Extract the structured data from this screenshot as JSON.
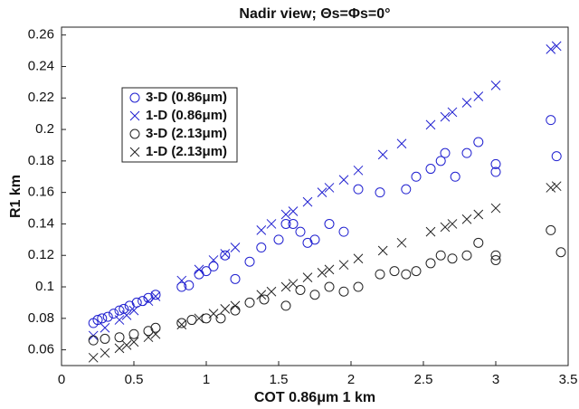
{
  "chart_data": {
    "type": "scatter",
    "title": "Nadir view; Θs=Φs=0°",
    "xlabel": "COT 0.86μm 1 km",
    "ylabel": "R1 km",
    "xlim": [
      0,
      3.5
    ],
    "ylim": [
      0.05,
      0.265
    ],
    "xticks": [
      0,
      0.5,
      1,
      1.5,
      2,
      2.5,
      3,
      3.5
    ],
    "yticks": [
      0.06,
      0.08,
      0.1,
      0.12,
      0.14,
      0.16,
      0.18,
      0.2,
      0.22,
      0.24,
      0.26
    ],
    "grid": false,
    "legend": "upper left",
    "series": [
      {
        "name": "3-D (0.86μm)",
        "color": "#2020d0",
        "marker": "o",
        "x": [
          0.22,
          0.25,
          0.28,
          0.32,
          0.36,
          0.4,
          0.43,
          0.47,
          0.52,
          0.56,
          0.6,
          0.65,
          0.83,
          0.88,
          0.95,
          1.0,
          1.05,
          1.13,
          1.2,
          1.3,
          1.38,
          1.5,
          1.55,
          1.6,
          1.65,
          1.7,
          1.75,
          1.85,
          1.95,
          2.05,
          2.2,
          2.38,
          2.45,
          2.55,
          2.62,
          2.65,
          2.72,
          2.8,
          2.88,
          3.0,
          3.0,
          3.38,
          3.42
        ],
        "y": [
          0.077,
          0.079,
          0.08,
          0.081,
          0.083,
          0.085,
          0.086,
          0.088,
          0.09,
          0.091,
          0.093,
          0.095,
          0.1,
          0.101,
          0.108,
          0.11,
          0.113,
          0.12,
          0.105,
          0.116,
          0.125,
          0.13,
          0.14,
          0.14,
          0.135,
          0.128,
          0.13,
          0.14,
          0.135,
          0.162,
          0.16,
          0.162,
          0.17,
          0.175,
          0.18,
          0.185,
          0.17,
          0.185,
          0.192,
          0.178,
          0.173,
          0.206,
          0.183
        ]
      },
      {
        "name": "1-D (0.86μm)",
        "color": "#2020d0",
        "marker": "x",
        "x": [
          0.22,
          0.3,
          0.4,
          0.45,
          0.5,
          0.6,
          0.65,
          0.83,
          0.95,
          1.05,
          1.13,
          1.2,
          1.38,
          1.45,
          1.55,
          1.6,
          1.7,
          1.8,
          1.85,
          1.95,
          2.05,
          2.22,
          2.35,
          2.55,
          2.65,
          2.7,
          2.8,
          2.88,
          3.0,
          3.38,
          3.42
        ],
        "y": [
          0.069,
          0.074,
          0.079,
          0.082,
          0.085,
          0.091,
          0.094,
          0.104,
          0.111,
          0.117,
          0.121,
          0.125,
          0.136,
          0.14,
          0.146,
          0.148,
          0.154,
          0.16,
          0.163,
          0.168,
          0.174,
          0.184,
          0.191,
          0.203,
          0.208,
          0.211,
          0.217,
          0.221,
          0.228,
          0.251,
          0.253
        ]
      },
      {
        "name": "3-D (2.13μm)",
        "color": "#222222",
        "marker": "o",
        "x": [
          0.22,
          0.3,
          0.4,
          0.5,
          0.6,
          0.65,
          0.83,
          0.9,
          1.0,
          1.1,
          1.2,
          1.3,
          1.4,
          1.55,
          1.65,
          1.75,
          1.85,
          1.95,
          2.05,
          2.2,
          2.3,
          2.38,
          2.45,
          2.55,
          2.62,
          2.7,
          2.8,
          2.88,
          3.0,
          3.0,
          3.38,
          3.45
        ],
        "y": [
          0.066,
          0.067,
          0.068,
          0.07,
          0.072,
          0.074,
          0.077,
          0.079,
          0.08,
          0.08,
          0.085,
          0.09,
          0.092,
          0.088,
          0.098,
          0.095,
          0.1,
          0.097,
          0.1,
          0.108,
          0.11,
          0.108,
          0.11,
          0.115,
          0.12,
          0.118,
          0.12,
          0.128,
          0.12,
          0.117,
          0.136,
          0.122
        ]
      },
      {
        "name": "1-D (2.13μm)",
        "color": "#222222",
        "marker": "x",
        "x": [
          0.22,
          0.3,
          0.4,
          0.45,
          0.5,
          0.6,
          0.65,
          0.83,
          0.95,
          1.05,
          1.13,
          1.2,
          1.38,
          1.45,
          1.55,
          1.6,
          1.7,
          1.8,
          1.85,
          1.95,
          2.05,
          2.22,
          2.35,
          2.55,
          2.65,
          2.7,
          2.8,
          2.88,
          3.0,
          3.38,
          3.42
        ],
        "y": [
          0.055,
          0.058,
          0.061,
          0.063,
          0.065,
          0.068,
          0.07,
          0.076,
          0.08,
          0.083,
          0.086,
          0.088,
          0.095,
          0.097,
          0.1,
          0.102,
          0.106,
          0.109,
          0.111,
          0.114,
          0.118,
          0.123,
          0.128,
          0.135,
          0.138,
          0.14,
          0.143,
          0.146,
          0.15,
          0.163,
          0.164
        ]
      }
    ]
  }
}
